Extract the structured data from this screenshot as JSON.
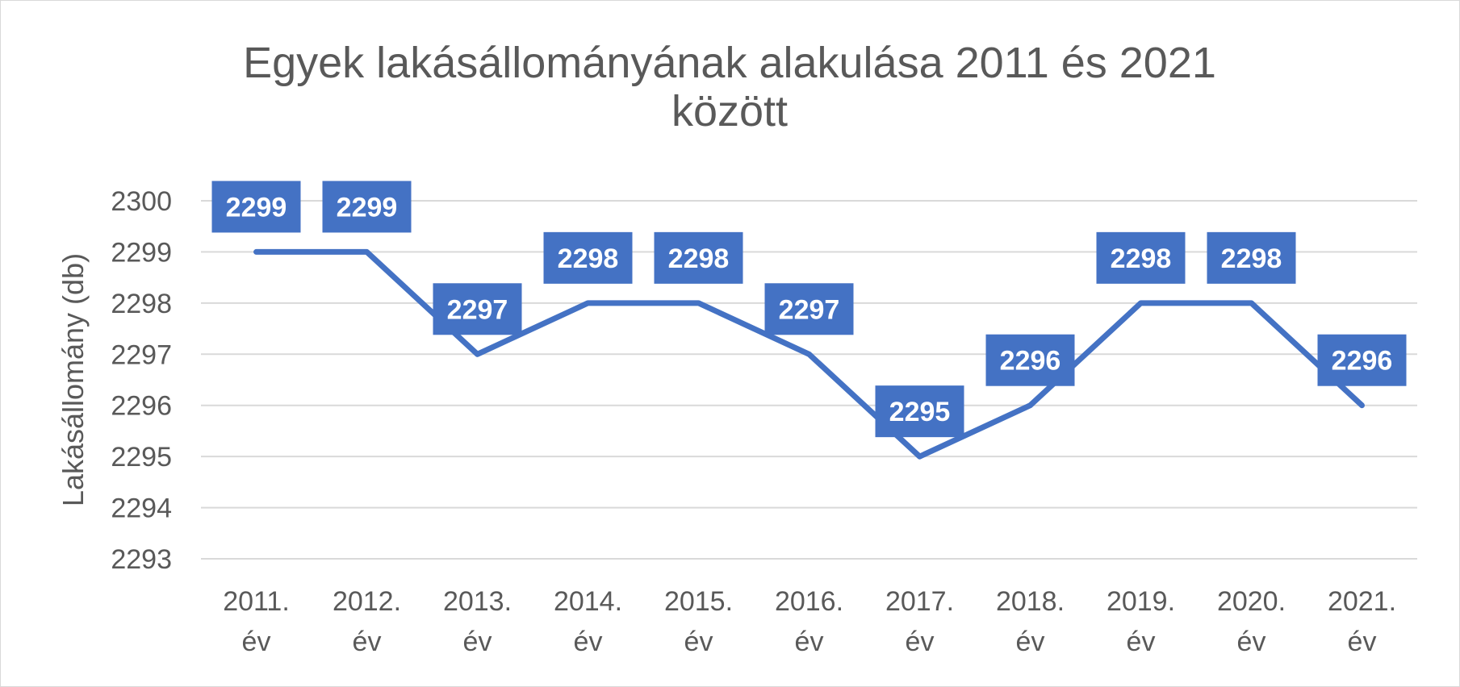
{
  "chart_data": {
    "type": "line",
    "title": "Egyek lakásállományának  alakulása 2011 és 2021 között",
    "title_lines": [
      "Egyek lakásállományának  alakulása 2011 és 2021",
      "között"
    ],
    "xlabel": "",
    "ylabel": "Lakásállomány (db)",
    "categories": [
      "2011. év",
      "2012. év",
      "2013. év",
      "2014. év",
      "2015. év",
      "2016. év",
      "2017. év",
      "2018. év",
      "2019. év",
      "2020. év",
      "2021. év"
    ],
    "category_lines": [
      [
        "2011.",
        "év"
      ],
      [
        "2012.",
        "év"
      ],
      [
        "2013.",
        "év"
      ],
      [
        "2014.",
        "év"
      ],
      [
        "2015.",
        "év"
      ],
      [
        "2016.",
        "év"
      ],
      [
        "2017.",
        "év"
      ],
      [
        "2018.",
        "év"
      ],
      [
        "2019.",
        "év"
      ],
      [
        "2020.",
        "év"
      ],
      [
        "2021.",
        "év"
      ]
    ],
    "series": [
      {
        "values": [
          2299,
          2299,
          2297,
          2298,
          2298,
          2297,
          2295,
          2296,
          2298,
          2298,
          2296
        ]
      }
    ],
    "ylim": [
      2293,
      2300
    ],
    "yticks": [
      2293,
      2294,
      2295,
      2296,
      2297,
      2298,
      2299,
      2300
    ],
    "grid": true,
    "legend": "none",
    "line_color": "#4472C4",
    "label_bg_color": "#4472C4",
    "grid_color": "#d9d9d9"
  }
}
